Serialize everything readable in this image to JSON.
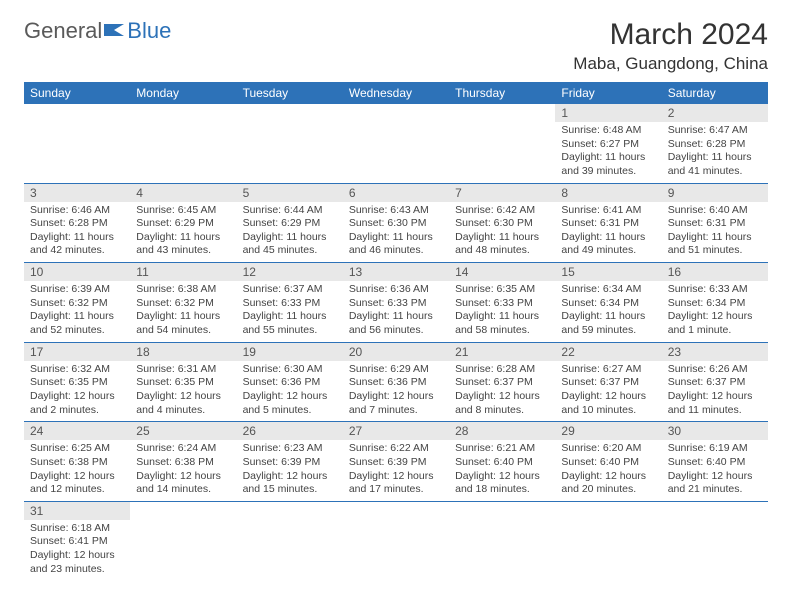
{
  "logo": {
    "text1": "General",
    "text2": "Blue"
  },
  "title": "March 2024",
  "location": "Maba, Guangdong, China",
  "colors": {
    "accent": "#2d72b8",
    "daynum_bg": "#e8e8e8"
  },
  "weekdays": [
    "Sunday",
    "Monday",
    "Tuesday",
    "Wednesday",
    "Thursday",
    "Friday",
    "Saturday"
  ],
  "days": [
    {
      "n": "1",
      "sr": "6:48 AM",
      "ss": "6:27 PM",
      "dl": "11 hours and 39 minutes."
    },
    {
      "n": "2",
      "sr": "6:47 AM",
      "ss": "6:28 PM",
      "dl": "11 hours and 41 minutes."
    },
    {
      "n": "3",
      "sr": "6:46 AM",
      "ss": "6:28 PM",
      "dl": "11 hours and 42 minutes."
    },
    {
      "n": "4",
      "sr": "6:45 AM",
      "ss": "6:29 PM",
      "dl": "11 hours and 43 minutes."
    },
    {
      "n": "5",
      "sr": "6:44 AM",
      "ss": "6:29 PM",
      "dl": "11 hours and 45 minutes."
    },
    {
      "n": "6",
      "sr": "6:43 AM",
      "ss": "6:30 PM",
      "dl": "11 hours and 46 minutes."
    },
    {
      "n": "7",
      "sr": "6:42 AM",
      "ss": "6:30 PM",
      "dl": "11 hours and 48 minutes."
    },
    {
      "n": "8",
      "sr": "6:41 AM",
      "ss": "6:31 PM",
      "dl": "11 hours and 49 minutes."
    },
    {
      "n": "9",
      "sr": "6:40 AM",
      "ss": "6:31 PM",
      "dl": "11 hours and 51 minutes."
    },
    {
      "n": "10",
      "sr": "6:39 AM",
      "ss": "6:32 PM",
      "dl": "11 hours and 52 minutes."
    },
    {
      "n": "11",
      "sr": "6:38 AM",
      "ss": "6:32 PM",
      "dl": "11 hours and 54 minutes."
    },
    {
      "n": "12",
      "sr": "6:37 AM",
      "ss": "6:33 PM",
      "dl": "11 hours and 55 minutes."
    },
    {
      "n": "13",
      "sr": "6:36 AM",
      "ss": "6:33 PM",
      "dl": "11 hours and 56 minutes."
    },
    {
      "n": "14",
      "sr": "6:35 AM",
      "ss": "6:33 PM",
      "dl": "11 hours and 58 minutes."
    },
    {
      "n": "15",
      "sr": "6:34 AM",
      "ss": "6:34 PM",
      "dl": "11 hours and 59 minutes."
    },
    {
      "n": "16",
      "sr": "6:33 AM",
      "ss": "6:34 PM",
      "dl": "12 hours and 1 minute."
    },
    {
      "n": "17",
      "sr": "6:32 AM",
      "ss": "6:35 PM",
      "dl": "12 hours and 2 minutes."
    },
    {
      "n": "18",
      "sr": "6:31 AM",
      "ss": "6:35 PM",
      "dl": "12 hours and 4 minutes."
    },
    {
      "n": "19",
      "sr": "6:30 AM",
      "ss": "6:36 PM",
      "dl": "12 hours and 5 minutes."
    },
    {
      "n": "20",
      "sr": "6:29 AM",
      "ss": "6:36 PM",
      "dl": "12 hours and 7 minutes."
    },
    {
      "n": "21",
      "sr": "6:28 AM",
      "ss": "6:37 PM",
      "dl": "12 hours and 8 minutes."
    },
    {
      "n": "22",
      "sr": "6:27 AM",
      "ss": "6:37 PM",
      "dl": "12 hours and 10 minutes."
    },
    {
      "n": "23",
      "sr": "6:26 AM",
      "ss": "6:37 PM",
      "dl": "12 hours and 11 minutes."
    },
    {
      "n": "24",
      "sr": "6:25 AM",
      "ss": "6:38 PM",
      "dl": "12 hours and 12 minutes."
    },
    {
      "n": "25",
      "sr": "6:24 AM",
      "ss": "6:38 PM",
      "dl": "12 hours and 14 minutes."
    },
    {
      "n": "26",
      "sr": "6:23 AM",
      "ss": "6:39 PM",
      "dl": "12 hours and 15 minutes."
    },
    {
      "n": "27",
      "sr": "6:22 AM",
      "ss": "6:39 PM",
      "dl": "12 hours and 17 minutes."
    },
    {
      "n": "28",
      "sr": "6:21 AM",
      "ss": "6:40 PM",
      "dl": "12 hours and 18 minutes."
    },
    {
      "n": "29",
      "sr": "6:20 AM",
      "ss": "6:40 PM",
      "dl": "12 hours and 20 minutes."
    },
    {
      "n": "30",
      "sr": "6:19 AM",
      "ss": "6:40 PM",
      "dl": "12 hours and 21 minutes."
    },
    {
      "n": "31",
      "sr": "6:18 AM",
      "ss": "6:41 PM",
      "dl": "12 hours and 23 minutes."
    }
  ],
  "labels": {
    "sunrise": "Sunrise: ",
    "sunset": "Sunset: ",
    "daylight": "Daylight: "
  },
  "layout": {
    "first_weekday_index": 5,
    "rows": 6,
    "cols": 7
  }
}
